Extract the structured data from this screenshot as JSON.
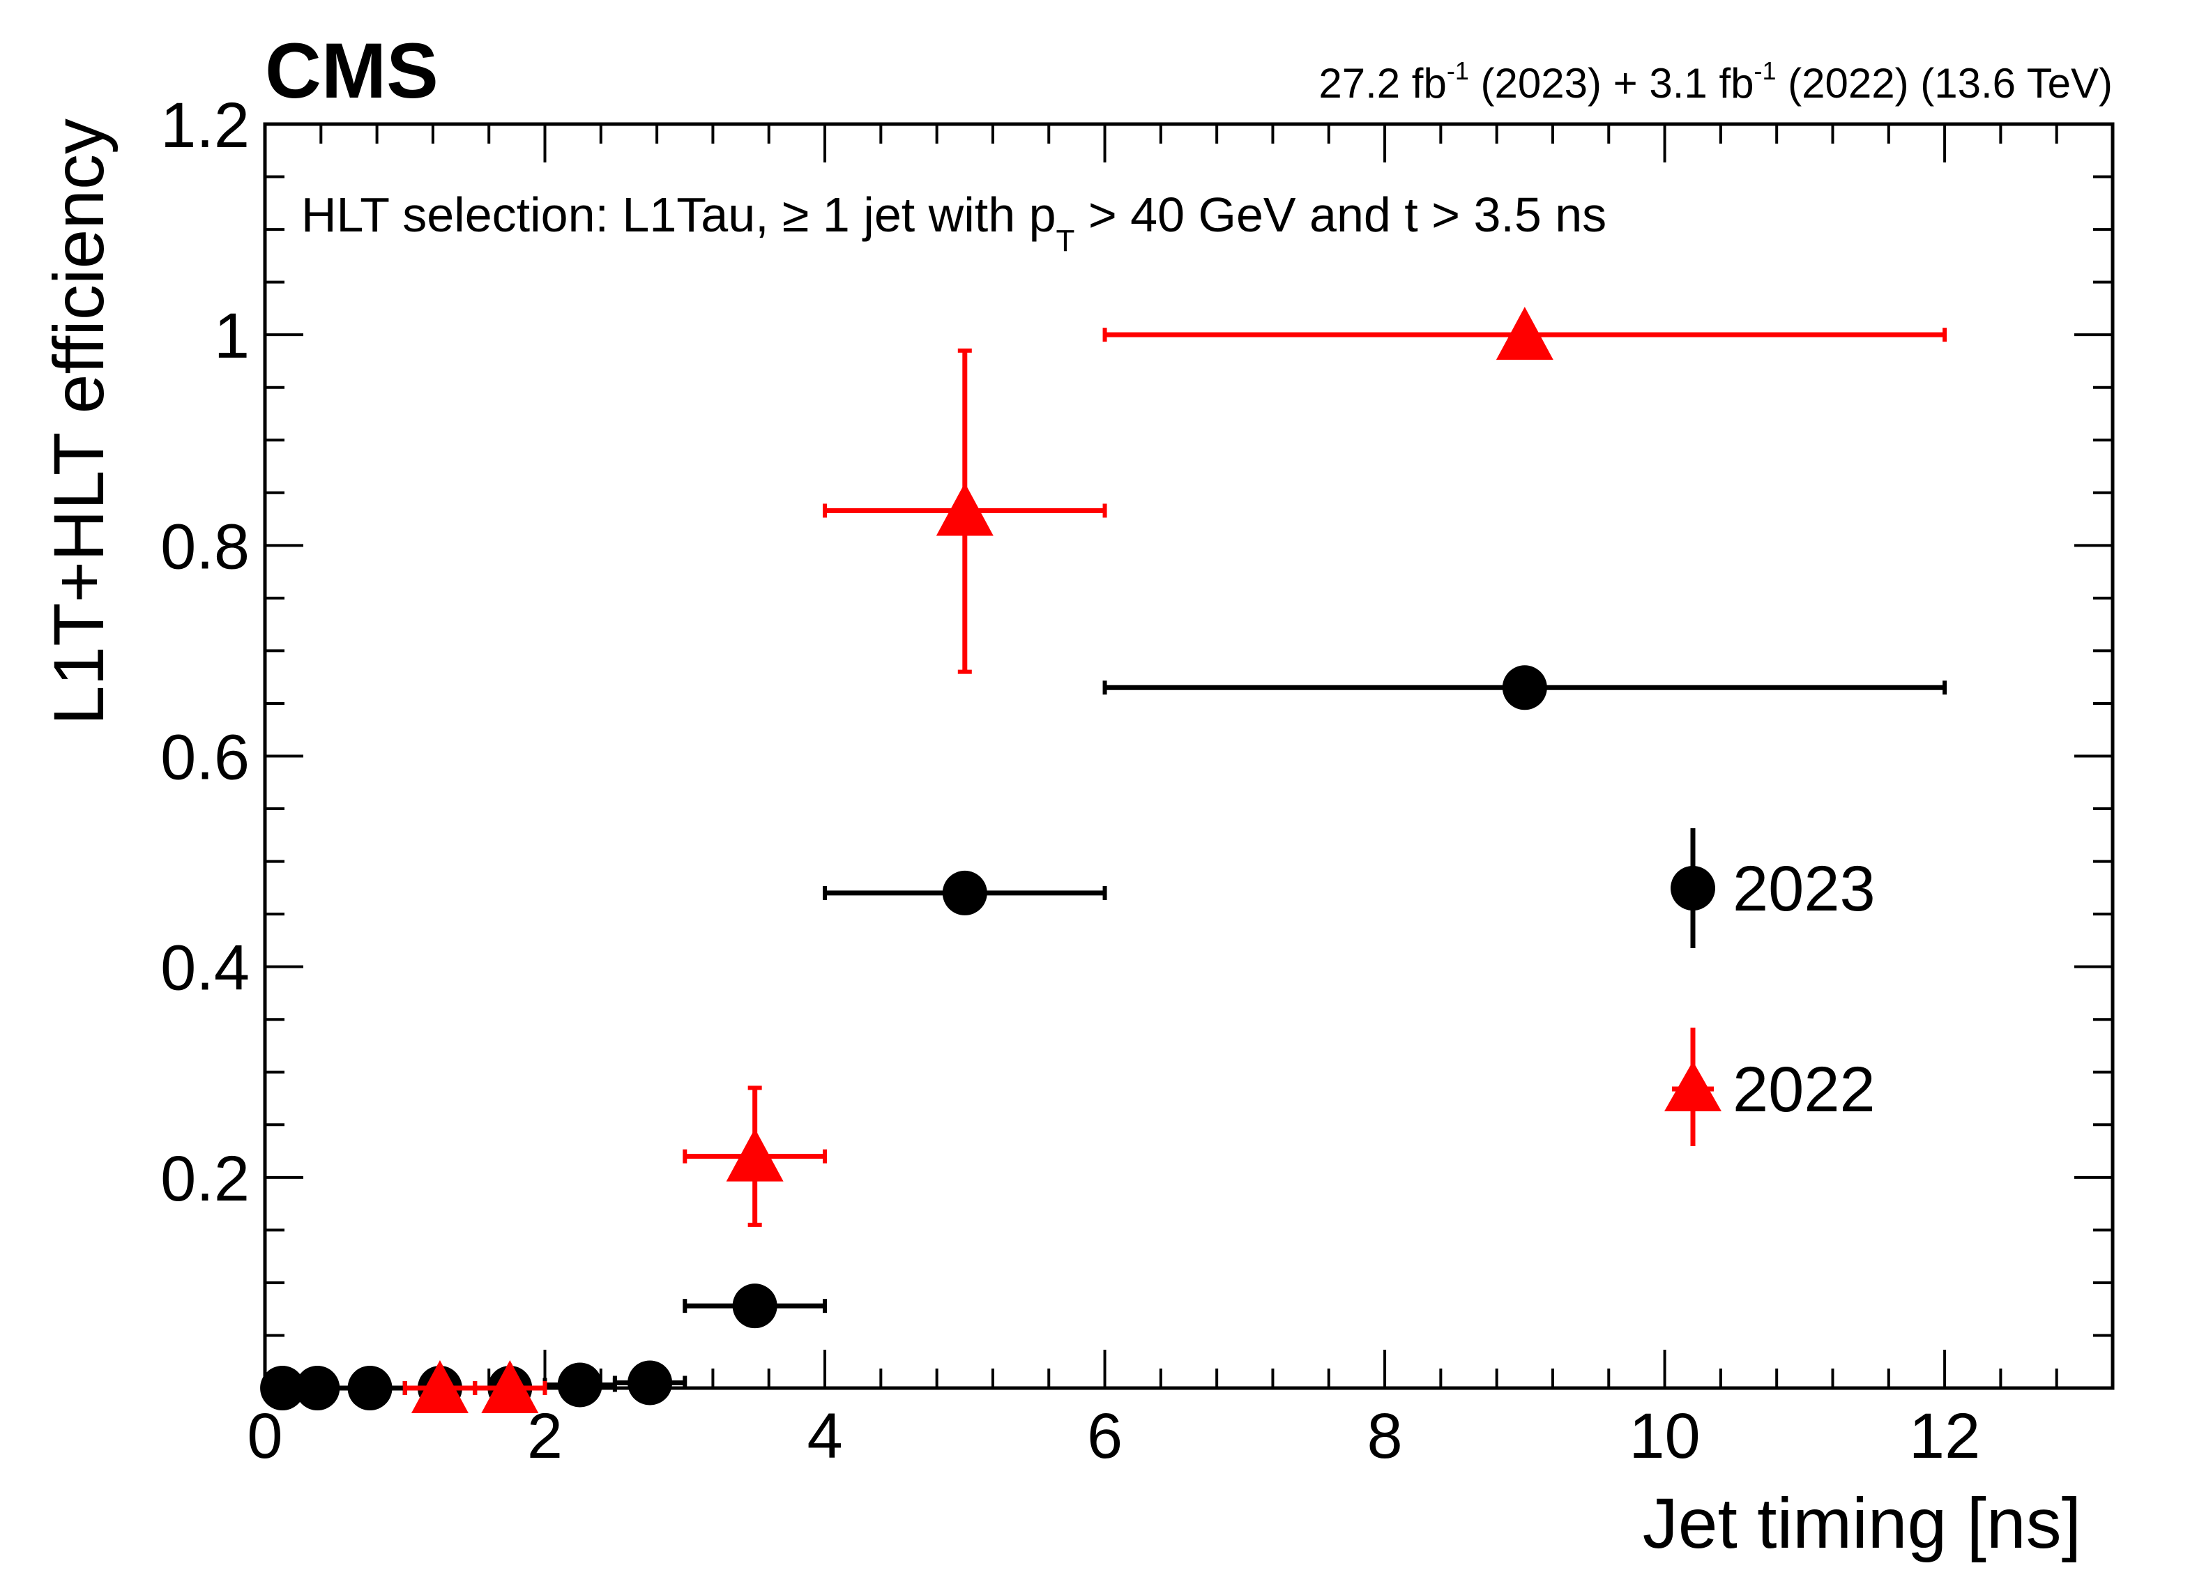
{
  "chart_data": {
    "type": "scatter",
    "experiment": "CMS",
    "lumi": {
      "part1_value": "27.2 fb",
      "part1_exp": "-1",
      "part1_year": " (2023) + ",
      "part2_value": "3.1 fb",
      "part2_exp": "-1",
      "part2_rest": " (2022) (13.6 TeV)"
    },
    "selection": {
      "prefix": "HLT selection: L1Tau, ≥ 1 jet with p",
      "sub": "T",
      "suffix": " > 40 GeV and t > 3.5 ns"
    },
    "xlabel": "Jet timing [ns]",
    "ylabel": "L1T+HLT efficiency",
    "xlim": [
      0,
      13.2
    ],
    "ylim": [
      0,
      1.2
    ],
    "xticks": [
      0,
      2,
      4,
      6,
      8,
      10,
      12
    ],
    "xtick_labels": [
      "0",
      "2",
      "4",
      "6",
      "8",
      "10",
      "12"
    ],
    "yticks": [
      0.2,
      0.4,
      0.6,
      0.8,
      1.0,
      1.2
    ],
    "ytick_labels": [
      "0.2",
      "0.4",
      "0.6",
      "0.8",
      "1",
      "1.2"
    ],
    "grid": false,
    "legend_position": "right",
    "series": [
      {
        "name": "2023",
        "marker": "circle",
        "color": "#000000",
        "points": [
          {
            "x": 0.125,
            "y": 0.0,
            "xlo": 0.0,
            "xhi": 0.25,
            "ylo": 0.0,
            "yhi": 0.0
          },
          {
            "x": 0.375,
            "y": 0.0,
            "xlo": 0.25,
            "xhi": 0.5,
            "ylo": 0.0,
            "yhi": 0.0
          },
          {
            "x": 0.75,
            "y": 0.0,
            "xlo": 0.5,
            "xhi": 1.0,
            "ylo": 0.0,
            "yhi": 0.0
          },
          {
            "x": 1.25,
            "y": 0.0,
            "xlo": 1.0,
            "xhi": 1.5,
            "ylo": 0.0,
            "yhi": 0.0
          },
          {
            "x": 1.75,
            "y": 0.0,
            "xlo": 1.5,
            "xhi": 2.0,
            "ylo": 0.0,
            "yhi": 0.0
          },
          {
            "x": 2.25,
            "y": 0.003,
            "xlo": 2.0,
            "xhi": 2.5,
            "ylo": 0.003,
            "yhi": 0.003
          },
          {
            "x": 2.75,
            "y": 0.005,
            "xlo": 2.5,
            "xhi": 3.0,
            "ylo": 0.005,
            "yhi": 0.005
          },
          {
            "x": 3.5,
            "y": 0.078,
            "xlo": 3.0,
            "xhi": 4.0,
            "ylo": 0.078,
            "yhi": 0.078
          },
          {
            "x": 5.0,
            "y": 0.47,
            "xlo": 4.0,
            "xhi": 6.0,
            "ylo": 0.47,
            "yhi": 0.47
          },
          {
            "x": 9.0,
            "y": 0.665,
            "xlo": 6.0,
            "xhi": 12.0,
            "ylo": 0.665,
            "yhi": 0.665
          }
        ]
      },
      {
        "name": "2022",
        "marker": "triangle",
        "color": "#ff0000",
        "points": [
          {
            "x": 1.25,
            "y": 0.0,
            "xlo": 1.0,
            "xhi": 1.5,
            "ylo": 0.0,
            "yhi": 0.0
          },
          {
            "x": 1.75,
            "y": 0.0,
            "xlo": 1.5,
            "xhi": 2.0,
            "ylo": 0.0,
            "yhi": 0.0
          },
          {
            "x": 3.5,
            "y": 0.22,
            "xlo": 3.0,
            "xhi": 4.0,
            "ylo": 0.155,
            "yhi": 0.285
          },
          {
            "x": 5.0,
            "y": 0.833,
            "xlo": 4.0,
            "xhi": 6.0,
            "ylo": 0.68,
            "yhi": 0.985
          },
          {
            "x": 9.0,
            "y": 1.0,
            "xlo": 6.0,
            "xhi": 12.0,
            "ylo": 1.0,
            "yhi": 1.0
          }
        ]
      }
    ]
  }
}
